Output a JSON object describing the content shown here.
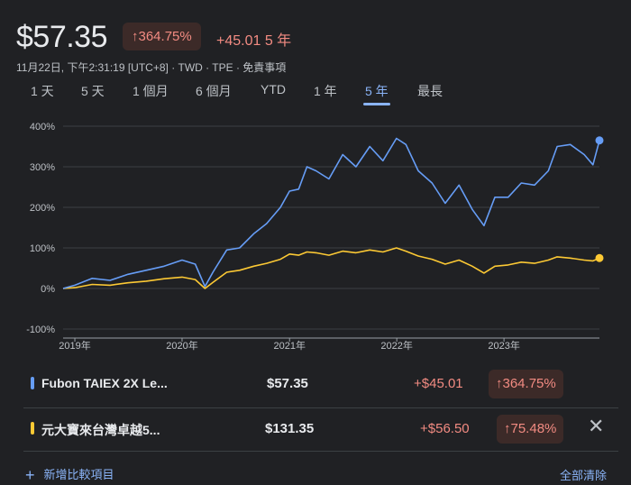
{
  "header": {
    "price": "$57.35",
    "pct_change": "↑364.75%",
    "abs_change": "+45.01 5 年",
    "meta": "11月22日, 下午2:31:19 [UTC+8] · TWD · TPE · 免責事項"
  },
  "ranges": [
    "1 天",
    "5 天",
    "1 個月",
    "6 個月",
    "YTD",
    "1 年",
    "5 年",
    "最長"
  ],
  "active_range": "5 年",
  "chart_data": {
    "type": "line",
    "xlabel": "",
    "ylabel": "",
    "x_ticks": [
      "2019年",
      "2020年",
      "2021年",
      "2022年",
      "2023年"
    ],
    "y_ticks": [
      "400%",
      "300%",
      "200%",
      "100%",
      "0%",
      "-100%"
    ],
    "ylim": [
      -100,
      400
    ],
    "x_range": [
      "2018-11-22",
      "2023-11-22"
    ],
    "grid": true,
    "series": [
      {
        "name": "Fubon TAIEX 2X Le...",
        "color": "#669df6",
        "x": [
          "2018-11-22",
          "2019-01-01",
          "2019-03-01",
          "2019-05-01",
          "2019-07-01",
          "2019-09-01",
          "2019-11-01",
          "2020-01-01",
          "2020-02-15",
          "2020-03-19",
          "2020-04-15",
          "2020-06-01",
          "2020-07-15",
          "2020-09-01",
          "2020-10-15",
          "2020-12-01",
          "2021-01-01",
          "2021-02-01",
          "2021-03-01",
          "2021-04-01",
          "2021-05-15",
          "2021-07-01",
          "2021-08-15",
          "2021-10-01",
          "2021-11-15",
          "2021-12-31",
          "2022-02-01",
          "2022-03-15",
          "2022-05-01",
          "2022-06-15",
          "2022-08-01",
          "2022-09-15",
          "2022-10-25",
          "2022-12-01",
          "2023-01-15",
          "2023-03-01",
          "2023-04-15",
          "2023-06-01",
          "2023-07-01",
          "2023-08-15",
          "2023-10-01",
          "2023-10-31",
          "2023-11-22"
        ],
        "values": [
          0,
          8,
          25,
          20,
          35,
          45,
          55,
          70,
          60,
          5,
          40,
          95,
          100,
          135,
          160,
          200,
          240,
          245,
          300,
          290,
          270,
          330,
          300,
          350,
          315,
          370,
          355,
          290,
          260,
          210,
          255,
          195,
          155,
          225,
          225,
          260,
          255,
          290,
          350,
          355,
          330,
          305,
          365
        ]
      },
      {
        "name": "元大寶來台灣卓越5...",
        "color": "#fcc934",
        "x": [
          "2018-11-22",
          "2019-01-01",
          "2019-03-01",
          "2019-05-01",
          "2019-07-01",
          "2019-09-01",
          "2019-11-01",
          "2020-01-01",
          "2020-02-15",
          "2020-03-19",
          "2020-04-15",
          "2020-06-01",
          "2020-07-15",
          "2020-09-01",
          "2020-10-15",
          "2020-12-01",
          "2021-01-01",
          "2021-02-01",
          "2021-03-01",
          "2021-04-01",
          "2021-05-15",
          "2021-07-01",
          "2021-08-15",
          "2021-10-01",
          "2021-11-15",
          "2021-12-31",
          "2022-02-01",
          "2022-03-15",
          "2022-05-01",
          "2022-06-15",
          "2022-08-01",
          "2022-09-15",
          "2022-10-25",
          "2022-12-01",
          "2023-01-15",
          "2023-03-01",
          "2023-04-15",
          "2023-06-01",
          "2023-07-01",
          "2023-08-15",
          "2023-10-01",
          "2023-10-31",
          "2023-11-22"
        ],
        "values": [
          0,
          2,
          10,
          8,
          14,
          18,
          24,
          28,
          22,
          0,
          15,
          40,
          45,
          55,
          62,
          72,
          85,
          82,
          90,
          88,
          82,
          92,
          88,
          95,
          90,
          100,
          92,
          80,
          72,
          60,
          70,
          55,
          38,
          55,
          58,
          65,
          62,
          70,
          78,
          75,
          70,
          68,
          75
        ]
      }
    ]
  },
  "compare": [
    {
      "name": "Fubon TAIEX 2X Le...",
      "price": "$57.35",
      "change": "+$45.01",
      "pct": "↑364.75%",
      "color": "#669df6"
    },
    {
      "name": "元大寶來台灣卓越5...",
      "price": "$131.35",
      "change": "+$56.50",
      "pct": "↑75.48%",
      "color": "#fcc934",
      "close": "✕"
    }
  ],
  "footer": {
    "add_label": "新增比較項目",
    "add_icon": "+",
    "clear_label": "全部清除"
  }
}
